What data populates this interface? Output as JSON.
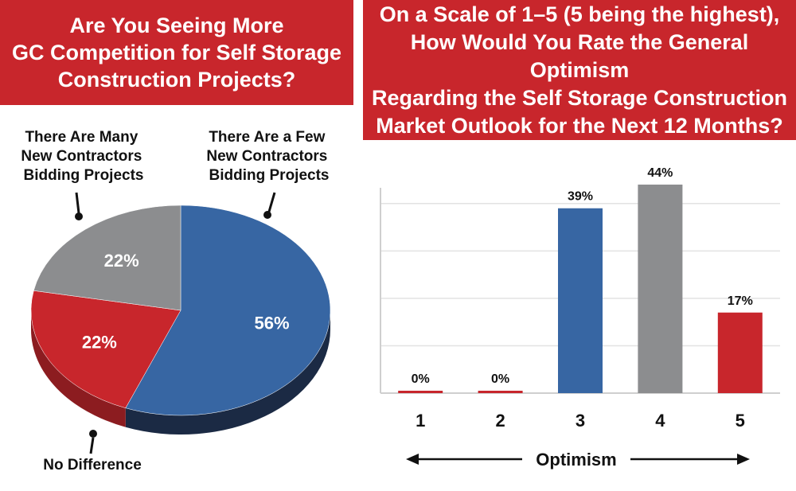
{
  "chart_data": [
    {
      "type": "pie",
      "title": "Are You Seeing More GC Competition for Self Storage Construction Projects?",
      "title_lines": [
        "Are You Seeing More",
        "GC Competition for Self Storage",
        "Construction Projects?"
      ],
      "slices": [
        {
          "label": "There Are a Few New Contractors Bidding Projects",
          "label_lines": [
            "There Are a Few",
            "New Contractors",
            "Bidding Projects"
          ],
          "value": 56,
          "value_label": "56%",
          "color": "#3766a3"
        },
        {
          "label": "No Difference",
          "label_lines": [
            "No Difference"
          ],
          "value": 22,
          "value_label": "22%",
          "color": "#c8262c"
        },
        {
          "label": "There Are Many New Contractors Bidding Projects",
          "label_lines": [
            "There Are Many",
            "New Contractors",
            "Bidding Projects"
          ],
          "value": 22,
          "value_label": "22%",
          "color": "#8c8d8f"
        }
      ]
    },
    {
      "type": "bar",
      "title": "On a Scale of 1–5 (5 being the highest), How Would You Rate the General Optimism Regarding the Self Storage Construction Market Outlook for the Next 12 Months?",
      "title_lines": [
        "On a Scale of 1–5 (5 being the highest),",
        "How Would You Rate the General Optimism",
        "Regarding the Self Storage Construction",
        "Market Outlook for the Next 12 Months?"
      ],
      "categories": [
        "1",
        "2",
        "3",
        "4",
        "5"
      ],
      "values": [
        0,
        0,
        39,
        44,
        17
      ],
      "value_labels": [
        "0%",
        "0%",
        "39%",
        "44%",
        "17%"
      ],
      "colors": [
        "#c8262c",
        "#c8262c",
        "#3766a3",
        "#8c8d8f",
        "#c8262c"
      ],
      "xlabel": "Optimism",
      "ylabel": "",
      "ylim": [
        0,
        45
      ],
      "grid": true
    }
  ]
}
